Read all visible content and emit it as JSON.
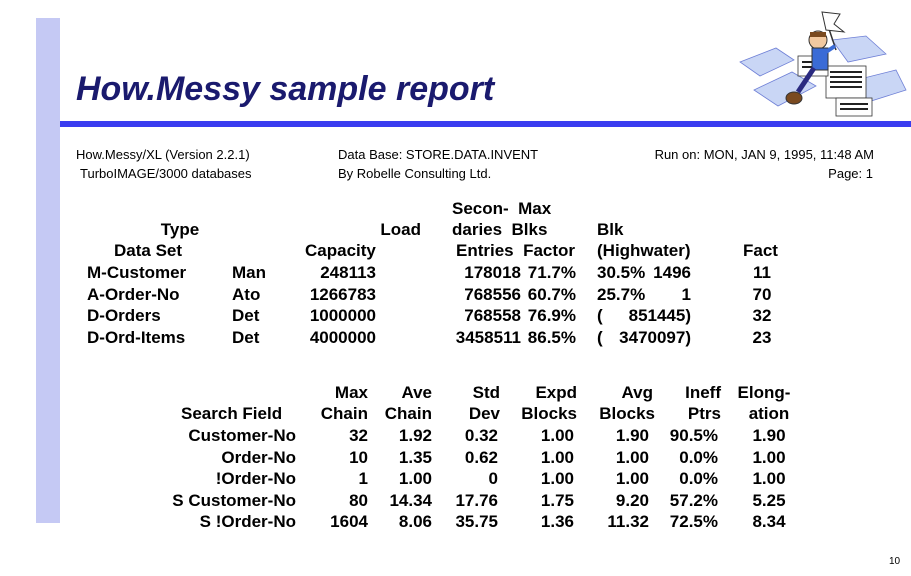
{
  "title": "How.Messy sample report",
  "header": {
    "left_line1": "How.Messy/XL (Version 2.2.1)",
    "left_line2": "TurboIMAGE/3000 databases",
    "mid_line1": "Data Base: STORE.DATA.INVENT",
    "mid_line2": "By Robelle Consulting Ltd.",
    "run_on": "Run on: MON, JAN 9, 1995, 11:48 AM",
    "page": "Page: 1"
  },
  "table1": {
    "head_type": "Type",
    "head_dataset": "Data Set",
    "head_load": "Load",
    "head_capacity": "Capacity",
    "head_secon": "Secon-  Max",
    "head_daries": "daries  Blks",
    "head_entries": "Entries  Factor",
    "head_blk": "Blk",
    "head_highwater": "(Highwater)",
    "head_fact": "Fact",
    "rows": [
      {
        "name": "M-Customer",
        "type": "Man",
        "capacity": "248113",
        "entries": "178018",
        "load": "71.7%",
        "blk": "30.5%",
        "high": "1496",
        "fact": "11"
      },
      {
        "name": "A-Order-No",
        "type": "Ato",
        "capacity": "1266783",
        "entries": "768556",
        "load": "60.7%",
        "blk": "25.7%",
        "high": "1",
        "fact": "70"
      },
      {
        "name": "D-Orders",
        "type": "Det",
        "capacity": "1000000",
        "entries": "768558",
        "load": "76.9%",
        "blk": "(",
        "high": "851445)",
        "fact": "32"
      },
      {
        "name": "D-Ord-Items",
        "type": "Det",
        "capacity": "4000000",
        "entries": "3458511",
        "load": "86.5%",
        "blk": "(",
        "high": "3470097)",
        "fact": "23"
      }
    ]
  },
  "table2": {
    "h1": [
      "Max",
      "Ave",
      "Std",
      "Expd",
      "Avg",
      "Ineff",
      "Elong-"
    ],
    "h2": [
      "Search Field",
      "Chain",
      "Chain",
      "Dev",
      "Blocks",
      "Blocks",
      "Ptrs",
      "ation"
    ],
    "rows": [
      {
        "field": "Customer-No",
        "max": "32",
        "ave": "1.92",
        "std": "0.32",
        "expd": "1.00",
        "avg": "1.90",
        "ineff": "90.5%",
        "elong": "1.90"
      },
      {
        "field": "Order-No",
        "max": "10",
        "ave": "1.35",
        "std": "0.62",
        "expd": "1.00",
        "avg": "1.00",
        "ineff": "0.0%",
        "elong": "1.00"
      },
      {
        "field": "!Order-No",
        "max": "1",
        "ave": "1.00",
        "std": "0",
        "expd": "1.00",
        "avg": "1.00",
        "ineff": "0.0%",
        "elong": "1.00"
      },
      {
        "field": "S Customer-No",
        "max": "80",
        "ave": "14.34",
        "std": "17.76",
        "expd": "1.75",
        "avg": "9.20",
        "ineff": "57.2%",
        "elong": "5.25"
      },
      {
        "field": "S !Order-No",
        "max": "1604",
        "ave": "8.06",
        "std": "35.75",
        "expd": "1.36",
        "avg": "11.32",
        "ineff": "72.5%",
        "elong": "8.34"
      }
    ]
  },
  "page_number": "10",
  "clipart": {
    "icon": "person-with-flag-on-papers-icon",
    "accent": "#3a3cf0"
  }
}
